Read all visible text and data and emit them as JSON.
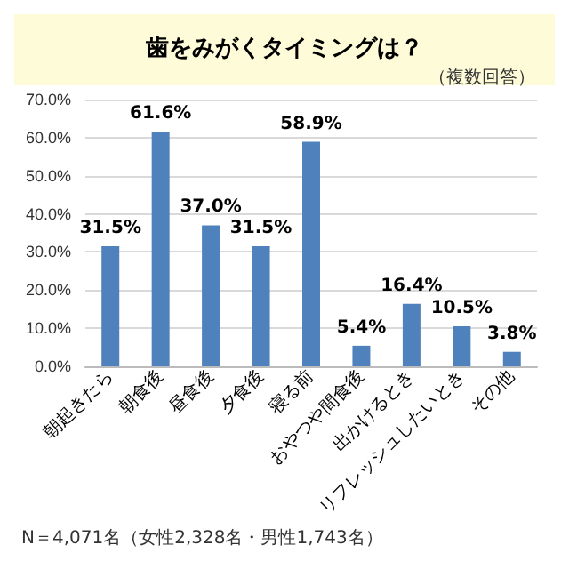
{
  "chart_data": {
    "type": "bar",
    "title": "歯をみがくタイミングは？",
    "subtitle": "（複数回答）",
    "categories": [
      "朝起きたら",
      "朝食後",
      "昼食後",
      "夕食後",
      "寝る前",
      "おやつや間食後",
      "出かけるとき",
      "リフレッシュしたいとき",
      "その他"
    ],
    "values": [
      31.5,
      61.6,
      37.0,
      31.5,
      58.9,
      5.4,
      16.4,
      10.5,
      3.8
    ],
    "color": "#4f81bd",
    "value_labels": [
      "31.5%",
      "61.6%",
      "37.0%",
      "31.5%",
      "58.9%",
      "5.4%",
      "16.4%",
      "10.5%",
      "3.8%"
    ],
    "ylim": [
      0,
      70
    ],
    "yticks": [
      {
        "value": 0,
        "label": "0.0%"
      },
      {
        "value": 10,
        "label": "10.0%"
      },
      {
        "value": 20,
        "label": "20.0%"
      },
      {
        "value": 30,
        "label": "30.0%"
      },
      {
        "value": 40,
        "label": "40.0%"
      },
      {
        "value": 50,
        "label": "50.0%"
      },
      {
        "value": 60,
        "label": "60.0%"
      },
      {
        "value": 70,
        "label": "70.0%"
      }
    ],
    "grid": "y",
    "annotations": [
      "N＝4,071名（女性2,328名・男性1,743名）"
    ]
  }
}
